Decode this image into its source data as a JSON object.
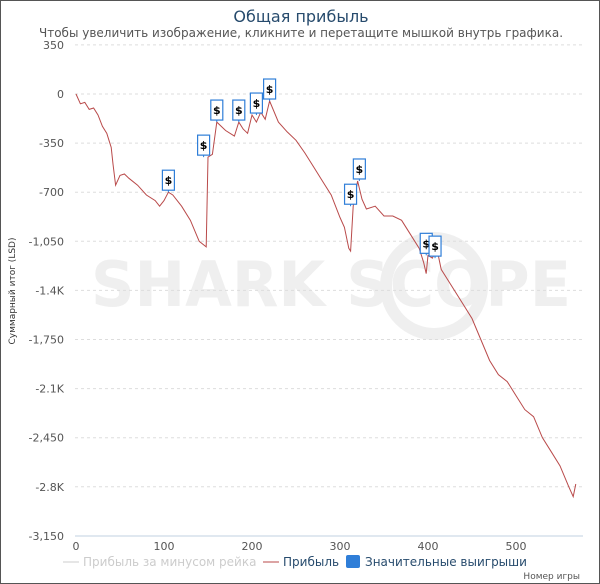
{
  "chart_data": {
    "type": "line",
    "title": "Общая прибыль",
    "subtitle": "Чтобы увеличить изображение, кликните и перетащите мышкой внутрь графика.",
    "xlabel": "Номер игры",
    "ylabel": "Суммарный итог (LSD)",
    "watermark": "SHARK SCOPE",
    "xlim": [
      0,
      575
    ],
    "ylim": [
      -3150,
      350
    ],
    "x_ticks": [
      "0",
      "100",
      "200",
      "300",
      "400",
      "500"
    ],
    "x_tick_values": [
      0,
      100,
      200,
      300,
      400,
      500
    ],
    "y_ticks": [
      "350",
      "0",
      "-350",
      "-700",
      "-1,050",
      "-1.4K",
      "-1,750",
      "-2.1K",
      "-2,450",
      "-2.8K",
      "-3,150"
    ],
    "y_tick_values": [
      350,
      0,
      -350,
      -700,
      -1050,
      -1400,
      -1750,
      -2100,
      -2450,
      -2800,
      -3150
    ],
    "grid": true,
    "legend": {
      "placement": "bottom",
      "items": [
        {
          "label": "Прибыль за минусом рейка",
          "color": "#cccccc",
          "kind": "line",
          "hidden": true
        },
        {
          "label": "Прибыль",
          "color": "#b94a4a",
          "kind": "line"
        },
        {
          "label": "Значительные выигрыши",
          "color": "#2f7ed8",
          "kind": "box"
        }
      ]
    },
    "series": [
      {
        "name": "Прибыль",
        "color": "#b94a4a",
        "x": [
          0,
          5,
          10,
          15,
          20,
          25,
          30,
          35,
          38,
          40,
          42,
          45,
          50,
          55,
          60,
          70,
          80,
          90,
          95,
          100,
          105,
          110,
          120,
          130,
          140,
          148,
          150,
          155,
          160,
          170,
          180,
          185,
          190,
          195,
          200,
          205,
          210,
          215,
          220,
          230,
          240,
          250,
          260,
          270,
          280,
          290,
          300,
          305,
          310,
          312,
          315,
          320,
          325,
          330,
          340,
          350,
          360,
          370,
          380,
          390,
          395,
          398,
          400,
          405,
          410,
          415,
          420,
          430,
          440,
          450,
          460,
          470,
          480,
          490,
          500,
          510,
          520,
          530,
          540,
          550,
          560,
          565,
          568
        ],
        "y": [
          0,
          -70,
          -60,
          -110,
          -100,
          -150,
          -230,
          -280,
          -340,
          -380,
          -500,
          -650,
          -580,
          -570,
          -600,
          -650,
          -720,
          -760,
          -800,
          -760,
          -700,
          -720,
          -800,
          -900,
          -1050,
          -1090,
          -450,
          -430,
          -200,
          -260,
          -300,
          -200,
          -250,
          -280,
          -150,
          -200,
          -130,
          -180,
          -50,
          -200,
          -270,
          -330,
          -420,
          -520,
          -620,
          -720,
          -880,
          -950,
          -1100,
          -1120,
          -800,
          -620,
          -750,
          -820,
          -800,
          -870,
          -870,
          -900,
          -1000,
          -1100,
          -1200,
          -1280,
          -1150,
          -1170,
          -1100,
          -1250,
          -1300,
          -1400,
          -1500,
          -1600,
          -1750,
          -1900,
          -2000,
          -2050,
          -2150,
          -2250,
          -2300,
          -2450,
          -2550,
          -2650,
          -2800,
          -2870,
          -2780
        ]
      }
    ],
    "flags": {
      "label": "$",
      "x": [
        105,
        145,
        160,
        185,
        205,
        220,
        312,
        322,
        398,
        408
      ],
      "y": [
        -700,
        -450,
        -200,
        -200,
        -150,
        -50,
        -800,
        -620,
        -1150,
        -1170
      ]
    }
  }
}
